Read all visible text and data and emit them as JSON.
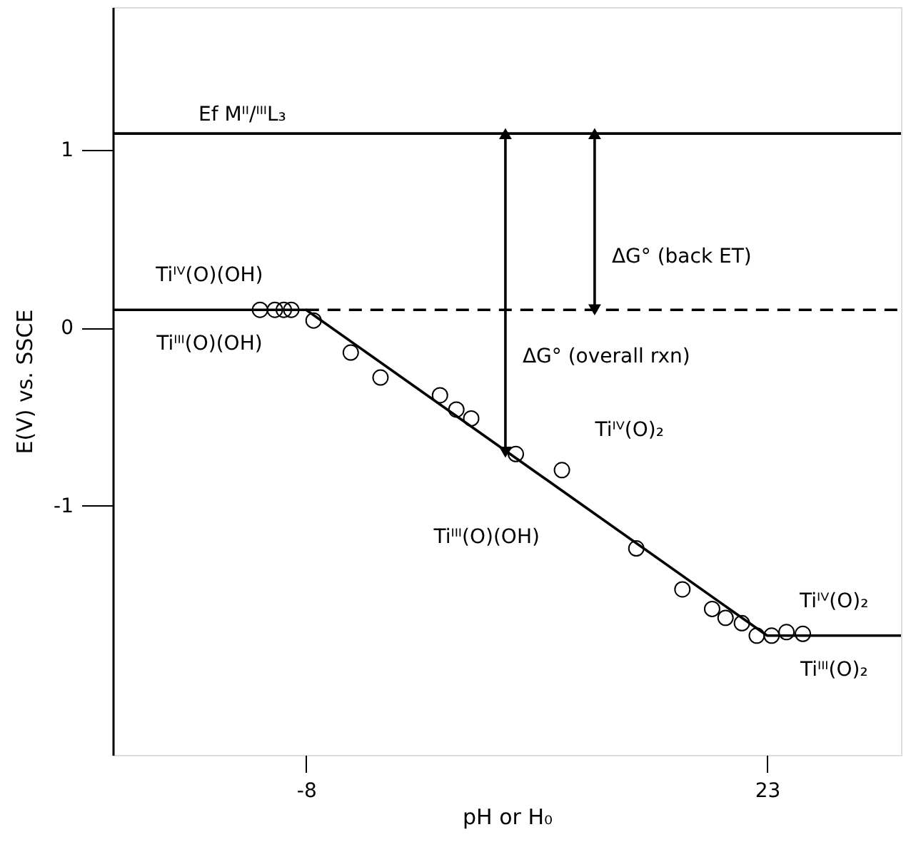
{
  "chart_data": {
    "type": "line",
    "xlabel": "pH or H₀",
    "ylabel": "E(V) vs. SSCE",
    "xlim": [
      -21,
      32
    ],
    "ylim": [
      -2.4,
      1.8
    ],
    "xticks": [
      -8,
      23
    ],
    "yticks": [
      -1,
      0,
      1
    ],
    "grid": false,
    "series": [
      {
        "color": "#000000",
        "line_style": "solid",
        "x": [
          -21,
          -8,
          23,
          32
        ],
        "values": [
          0.1,
          0.1,
          -1.73,
          -1.73
        ]
      },
      {
        "color": "#000000",
        "line_style": "dashed",
        "x": [
          -8,
          32
        ],
        "values": [
          0.1,
          0.1
        ]
      },
      {
        "type": "scatter",
        "color": "#000000",
        "marker": "circle",
        "x": [
          -11.1,
          -10.1,
          -9.5,
          -9.0,
          -7.5,
          -5.0,
          -3.0,
          1.0,
          2.1,
          3.1,
          6.1,
          9.2,
          14.2,
          17.3,
          19.3,
          20.2,
          21.3,
          22.3,
          23.3,
          24.3,
          25.4
        ],
        "values": [
          0.1,
          0.1,
          0.1,
          0.1,
          0.04,
          -0.14,
          -0.28,
          -0.38,
          -0.46,
          -0.51,
          -0.71,
          -0.8,
          -1.24,
          -1.47,
          -1.58,
          -1.63,
          -1.66,
          -1.73,
          -1.73,
          -1.71,
          -1.72
        ]
      },
      {
        "color": "#000000",
        "line_style": "solid",
        "marker": "triangle",
        "x": [
          5.4,
          5.4
        ],
        "values": [
          1.09,
          -0.7
        ]
      },
      {
        "color": "#000000",
        "line_style": "solid",
        "marker": "triangle",
        "x": [
          11.4,
          11.4
        ],
        "values": [
          1.09,
          0.1
        ]
      }
    ],
    "ref_lines": [
      {
        "axis": "y",
        "value": 1.09,
        "label": "Ef Mᴵᴵ/ᴵᴵᴵL₃",
        "color": "#000000",
        "line_style": "solid"
      }
    ],
    "annotations": [
      "Tiᴵⱽ(O)(OH)",
      "Tiᴵᴵᴵ(O)(OH)",
      "Tiᴵⱽ(O)₂",
      "Tiᴵᴵᴵ(O)(OH)",
      "Tiᴵⱽ(O)₂",
      "Tiᴵᴵᴵ(O)₂",
      "ΔG° (overall rxn)",
      "ΔG° (back ET)"
    ]
  }
}
